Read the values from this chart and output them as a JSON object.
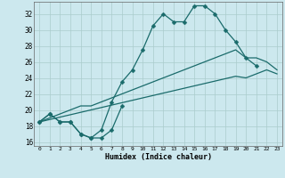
{
  "xlabel": "Humidex (Indice chaleur)",
  "bg_color": "#cce8ee",
  "grid_color": "#aacccc",
  "line_color": "#1a6b6b",
  "xlim": [
    -0.5,
    23.5
  ],
  "ylim": [
    15.5,
    33.5
  ],
  "xticks": [
    0,
    1,
    2,
    3,
    4,
    5,
    6,
    7,
    8,
    9,
    10,
    11,
    12,
    13,
    14,
    15,
    16,
    17,
    18,
    19,
    20,
    21,
    22,
    23
  ],
  "yticks": [
    16,
    18,
    20,
    22,
    24,
    26,
    28,
    30,
    32
  ],
  "line1_x": [
    0,
    1,
    2,
    3,
    4,
    5,
    6,
    7,
    8,
    9,
    10,
    11,
    12,
    13,
    14,
    15,
    16,
    17,
    18,
    19,
    20,
    21,
    22
  ],
  "line1_y": [
    18.5,
    19.5,
    18.5,
    18.5,
    17.0,
    16.5,
    17.5,
    21.0,
    23.5,
    25.0,
    27.5,
    30.5,
    32.0,
    31.0,
    31.0,
    33.0,
    33.0,
    32.0,
    30.0,
    28.5,
    26.5,
    25.5,
    null
  ],
  "line2_x": [
    0,
    1,
    2,
    3,
    4,
    5,
    6,
    7,
    8
  ],
  "line2_y": [
    18.5,
    19.5,
    18.5,
    18.5,
    17.0,
    16.5,
    16.5,
    17.5,
    20.5
  ],
  "line3_x": [
    0,
    1,
    2,
    3,
    4,
    5,
    6,
    7,
    8,
    9,
    10,
    11,
    12,
    13,
    14,
    15,
    16,
    17,
    18,
    19,
    20,
    21,
    22,
    23
  ],
  "line3_y": [
    18.5,
    19.0,
    19.5,
    20.0,
    20.5,
    20.5,
    21.0,
    21.5,
    22.0,
    22.5,
    23.0,
    23.5,
    24.0,
    24.5,
    25.0,
    25.5,
    26.0,
    26.5,
    27.0,
    27.5,
    26.5,
    26.5,
    26.0,
    25.0
  ],
  "line4_x": [
    0,
    1,
    2,
    3,
    4,
    5,
    6,
    7,
    8,
    9,
    10,
    11,
    12,
    13,
    14,
    15,
    16,
    17,
    18,
    19,
    20,
    21,
    22,
    23
  ],
  "line4_y": [
    18.5,
    18.8,
    19.1,
    19.4,
    19.7,
    20.0,
    20.3,
    20.6,
    20.9,
    21.2,
    21.5,
    21.8,
    22.1,
    22.4,
    22.7,
    23.0,
    23.3,
    23.6,
    23.9,
    24.2,
    24.0,
    24.5,
    25.0,
    24.5
  ]
}
